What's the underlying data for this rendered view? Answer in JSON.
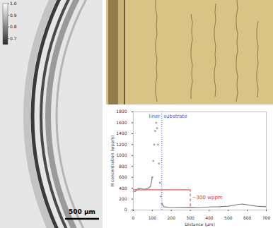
{
  "radiograph": {
    "colorbar": {
      "range": [
        0.65,
        1
      ],
      "ticks": [
        {
          "value": 1,
          "label": "1.0"
        },
        {
          "value": 0.9,
          "label": "0.9"
        },
        {
          "value": 0.8,
          "label": "0.8"
        },
        {
          "value": 0.7,
          "label": "0.7"
        }
      ]
    },
    "scale_bar": "500 µm"
  },
  "chart_data": {
    "type": "line",
    "xlabel": "Distance (µm)",
    "ylabel": "H concentration (wppm)",
    "x": [
      0,
      10,
      20,
      30,
      40,
      50,
      60,
      70,
      80,
      90,
      100,
      105,
      110,
      115,
      120,
      125,
      130,
      135,
      140,
      145,
      150,
      160,
      180,
      200,
      250,
      300,
      350,
      400,
      450,
      500,
      550,
      575,
      600,
      650,
      700
    ],
    "series": [
      {
        "color": "#808080",
        "line_style": "solid",
        "marker": "none",
        "values": [
          330,
          340,
          380,
          400,
          395,
          385,
          380,
          390,
          400,
          430,
          600,
          null,
          null,
          null,
          null,
          null,
          null,
          null,
          null,
          null,
          120,
          60,
          50,
          45,
          48,
          50,
          45,
          55,
          60,
          70,
          100,
          110,
          95,
          70,
          60
        ]
      },
      {
        "color": "#9a9a9a",
        "line_style": "none",
        "marker": "circle",
        "values": [
          null,
          null,
          null,
          null,
          null,
          null,
          null,
          null,
          null,
          null,
          600,
          900,
          1200,
          1450,
          1600,
          1500,
          1200,
          850,
          500,
          250,
          120,
          null,
          null,
          null,
          null,
          null,
          null,
          null,
          null,
          null,
          null,
          null,
          null,
          null,
          null
        ]
      }
    ],
    "xlim": [
      0,
      700
    ],
    "xticks": [
      0,
      100,
      200,
      300,
      400,
      500,
      600,
      700
    ],
    "ylim": [
      0,
      1800
    ],
    "yticks": [
      0,
      200,
      400,
      600,
      800,
      1000,
      1200,
      1400,
      1600,
      1800
    ],
    "grid": false,
    "annotations": [
      {
        "type": "vline",
        "x": 150,
        "y": [
          0,
          1800
        ],
        "color": "#3b5bdb",
        "line_style": "dotted"
      },
      {
        "type": "text",
        "text": "liner",
        "x": 140,
        "y": 1720,
        "color": "#3b5bdb",
        "anchor": "end"
      },
      {
        "type": "text",
        "text": "substrate",
        "x": 160,
        "y": 1720,
        "color": "#3b5bdb",
        "anchor": "start"
      },
      {
        "type": "hline",
        "y": 370,
        "x": [
          0,
          300
        ],
        "color": "#e03131",
        "line_style": "solid"
      },
      {
        "type": "vline",
        "x": 300,
        "y": [
          60,
          370
        ],
        "color": "#e03131",
        "line_style": "dashed"
      },
      {
        "type": "text",
        "text": "~300 wppm",
        "x": 310,
        "y": 230,
        "color": "#e03131",
        "anchor": "start"
      }
    ]
  }
}
